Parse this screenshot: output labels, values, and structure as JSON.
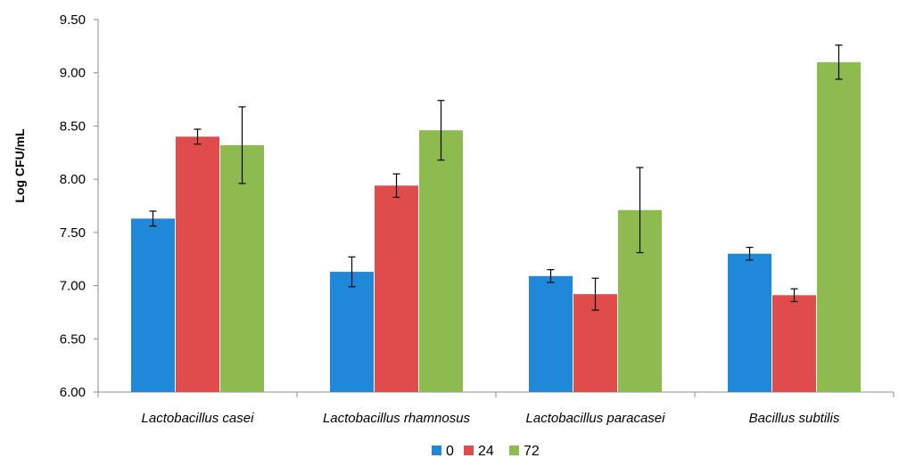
{
  "chart_data": {
    "type": "bar",
    "title": "",
    "xlabel": "",
    "ylabel": "Log CFU/mL",
    "ylim": [
      6.0,
      9.5
    ],
    "yticks": [
      "6.00",
      "6.50",
      "7.00",
      "7.50",
      "8.00",
      "8.50",
      "9.00",
      "9.50"
    ],
    "categories": [
      "Lactobacillus casei",
      "Lactobacillus rhamnosus",
      "Lactobacillus paracasei",
      "Bacillus subtilis"
    ],
    "series": [
      {
        "name": "0",
        "color": "#1f88d9",
        "values": [
          7.63,
          7.13,
          7.09,
          7.3
        ],
        "errors": [
          0.07,
          0.14,
          0.06,
          0.06
        ]
      },
      {
        "name": "24",
        "color": "#e04b4b",
        "values": [
          8.4,
          7.94,
          6.92,
          6.91
        ],
        "errors": [
          0.07,
          0.11,
          0.15,
          0.06
        ]
      },
      {
        "name": "72",
        "color": "#8dbb4f",
        "values": [
          8.32,
          8.46,
          7.71,
          9.1
        ],
        "errors": [
          0.36,
          0.28,
          0.4,
          0.16
        ]
      }
    ],
    "grid": false,
    "legend_position": "bottom-center"
  }
}
